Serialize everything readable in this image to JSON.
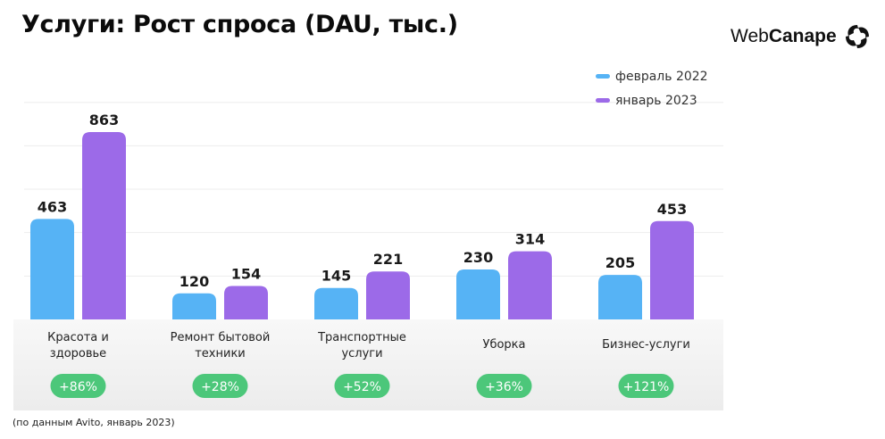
{
  "title": "Услуги: Рост спроса (DAU, тыс.)",
  "logo": {
    "text_regular": "Web",
    "text_bold": "Canape"
  },
  "source_note": "(по данным Avito, январь 2023)",
  "colors": {
    "series_feb": "#56b3f5",
    "series_jan": "#9c6ae8",
    "badge_bg": "#4cc77a",
    "band": "#ececec"
  },
  "chart_data": {
    "type": "bar",
    "title": "Услуги: Рост спроса (DAU, тыс.)",
    "categories": [
      [
        "Красота и",
        "здоровье"
      ],
      [
        "Ремонт бытовой",
        "техники"
      ],
      [
        "Транспортные",
        "услуги"
      ],
      [
        "Уборка"
      ],
      [
        "Бизнес-услуги"
      ]
    ],
    "series": [
      {
        "name": "февраль 2022",
        "values": [
          463,
          120,
          145,
          230,
          205
        ]
      },
      {
        "name": "январь 2023",
        "values": [
          863,
          154,
          221,
          314,
          453
        ]
      }
    ],
    "growth_badges": [
      "+86%",
      "+28%",
      "+52%",
      "+36%",
      "+121%"
    ],
    "ylim": [
      0,
      1000
    ],
    "grid": true,
    "legend_position": "top-right"
  }
}
